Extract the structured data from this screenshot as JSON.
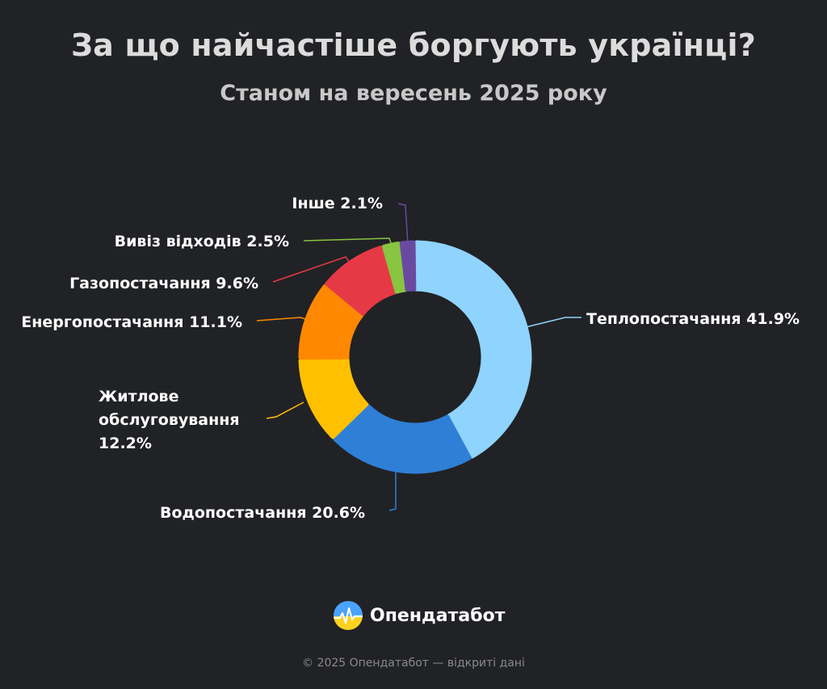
{
  "header": {
    "title": "За що найчастіше боргують українці?",
    "subtitle": "Станом на вересень 2025 року"
  },
  "brand": {
    "name": "Опендатабот"
  },
  "footer": {
    "text": "© 2025 Опендатабот — відкриті дані"
  },
  "chart_data": {
    "type": "pie",
    "title": "За що найчастіше боргують українці?",
    "subtitle": "Станом на вересень 2025 року",
    "unit": "%",
    "slices": [
      {
        "label": "Теплопостачання",
        "value": 41.9,
        "color": "#8fd3ff"
      },
      {
        "label": "Водопостачання",
        "value": 20.6,
        "color": "#2f7fd6"
      },
      {
        "label": "Житлове обслуговування",
        "value": 12.2,
        "color": "#ffc000"
      },
      {
        "label": "Енергопостачання",
        "value": 11.1,
        "color": "#ff8800"
      },
      {
        "label": "Газопостачання",
        "value": 9.6,
        "color": "#e63946"
      },
      {
        "label": "Вивіз відходів",
        "value": 2.5,
        "color": "#88c540"
      },
      {
        "label": "Інше",
        "value": 2.1,
        "color": "#6a4aa0"
      }
    ]
  }
}
